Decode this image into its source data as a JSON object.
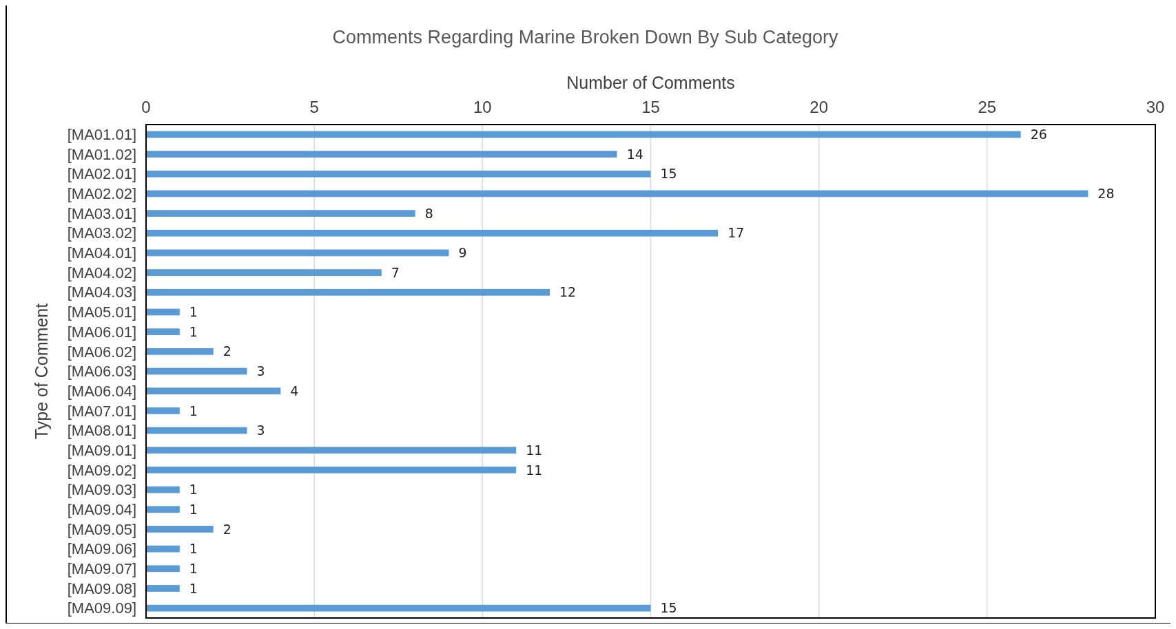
{
  "chart_data": {
    "type": "bar",
    "orientation": "horizontal",
    "title": "Comments Regarding Marine Broken Down By Sub Category",
    "xlabel": "Number of Comments",
    "ylabel": "Type of Comment",
    "categories": [
      "[MA01.01]",
      "[MA01.02]",
      "[MA02.01]",
      "[MA02.02]",
      "[MA03.01]",
      "[MA03.02]",
      "[MA04.01]",
      "[MA04.02]",
      "[MA04.03]",
      "[MA05.01]",
      "[MA06.01]",
      "[MA06.02]",
      "[MA06.03]",
      "[MA06.04]",
      "[MA07.01]",
      "[MA08.01]",
      "[MA09.01]",
      "[MA09.02]",
      "[MA09.03]",
      "[MA09.04]",
      "[MA09.05]",
      "[MA09.06]",
      "[MA09.07]",
      "[MA09.08]",
      "[MA09.09]"
    ],
    "values": [
      26,
      14,
      15,
      28,
      8,
      17,
      9,
      7,
      12,
      1,
      1,
      2,
      3,
      4,
      1,
      3,
      11,
      11,
      1,
      1,
      2,
      1,
      1,
      1,
      15
    ],
    "color": "#5b9bd5",
    "xlim": [
      0,
      30
    ],
    "xticks": [
      0,
      5,
      10,
      15,
      20,
      25,
      30
    ],
    "grid": "x",
    "data_labels": true
  }
}
